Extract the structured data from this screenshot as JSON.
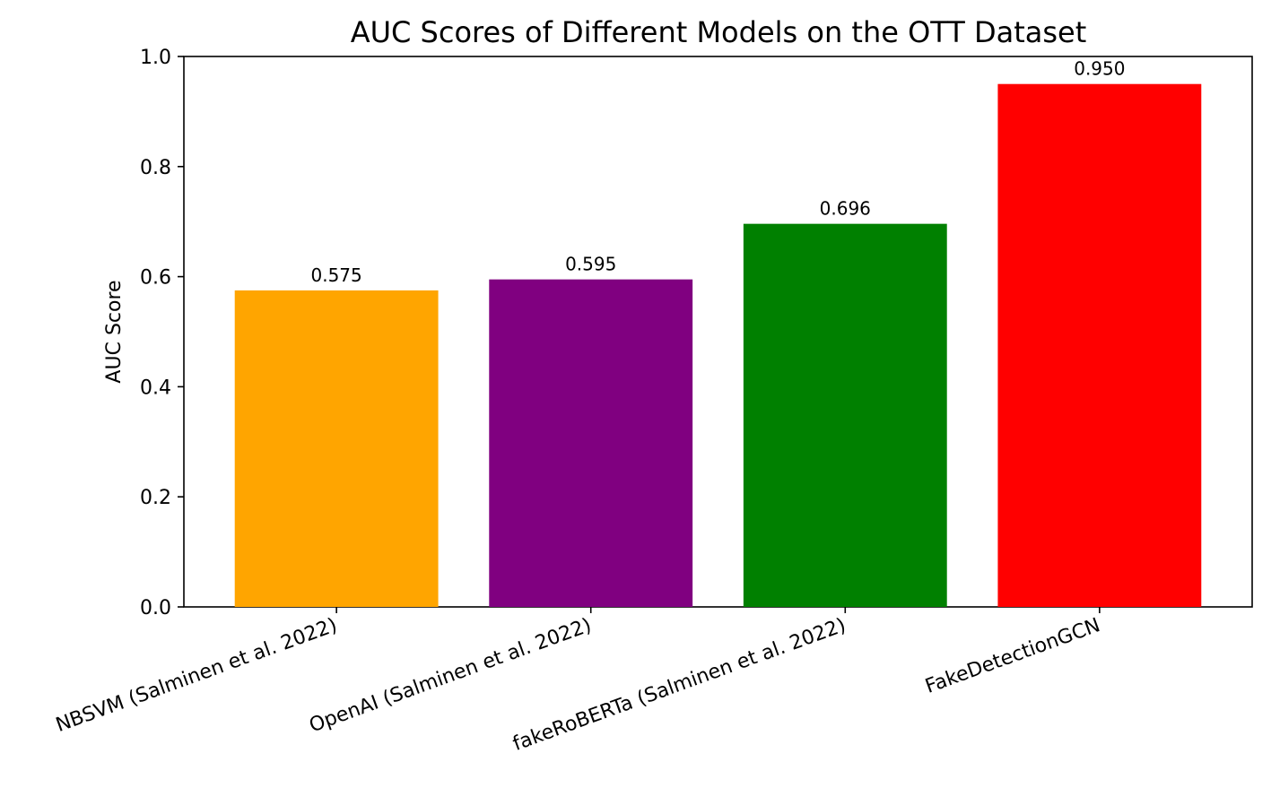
{
  "chart_data": {
    "type": "bar",
    "title": "AUC Scores of Different Models on the OTT Dataset",
    "xlabel": "",
    "ylabel": "AUC Score",
    "ylim": [
      0,
      1.0
    ],
    "yticks": [
      "0.0",
      "0.2",
      "0.4",
      "0.6",
      "0.8",
      "1.0"
    ],
    "categories": [
      "NBSVM (Salminen et al. 2022)",
      "OpenAI (Salminen et al. 2022)",
      "fakeRoBERTa (Salminen et al. 2022)",
      "FakeDetectionGCN"
    ],
    "values": [
      0.575,
      0.595,
      0.696,
      0.95
    ],
    "value_labels": [
      "0.575",
      "0.595",
      "0.696",
      "0.950"
    ],
    "colors": [
      "#FFA500",
      "#800080",
      "#008000",
      "#FF0000"
    ],
    "grid": false,
    "legend": "none"
  }
}
